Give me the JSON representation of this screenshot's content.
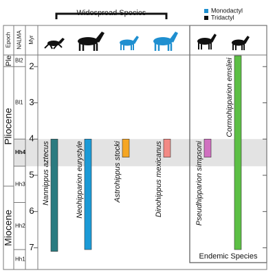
{
  "chart_data": {
    "type": "range",
    "title": "Widespread Species",
    "endemic_label": "Endemic Species",
    "columns": [
      "Epoch",
      "NALMA",
      "Myr"
    ],
    "legend": [
      {
        "name": "Monodactyl",
        "color": "#1f8fd0"
      },
      {
        "name": "Tridactyl",
        "color": "#111111"
      }
    ],
    "ylim": [
      1.68,
      7.6
    ],
    "yticks": [
      2,
      3,
      4,
      5,
      6,
      7
    ],
    "highlight": [
      4.0,
      4.75
    ],
    "epochs": [
      {
        "label": "Ple",
        "range": [
          1.68,
          2.0
        ]
      },
      {
        "label": "Pliocene",
        "range": [
          2.0,
          5.3
        ]
      },
      {
        "label": "Miocene",
        "range": [
          5.3,
          7.6
        ]
      }
    ],
    "nalma": [
      {
        "label": "Bl2",
        "range": [
          1.68,
          2.0
        ]
      },
      {
        "label": "Bl1",
        "range": [
          2.0,
          4.0
        ]
      },
      {
        "label": "Hh4",
        "range": [
          4.0,
          4.75
        ]
      },
      {
        "label": "Hh3",
        "range": [
          4.75,
          5.75
        ]
      },
      {
        "label": "Hh2",
        "range": [
          5.75,
          7.05
        ]
      },
      {
        "label": "Hh1",
        "range": [
          7.05,
          7.6
        ]
      }
    ],
    "series": [
      {
        "name": "Nannippus aztecus",
        "color": "#2b7b80",
        "values": [
          4.0,
          7.1
        ]
      },
      {
        "name": "Neohipparion eurystyle",
        "color": "#1b9ad6",
        "values": [
          4.0,
          7.05
        ]
      },
      {
        "name": "Astrohippus stocki",
        "color": "#f5a623",
        "values": [
          4.0,
          4.5
        ]
      },
      {
        "name": "Dinohippus mexicanus",
        "color": "#f28a85",
        "values": [
          4.0,
          4.5
        ]
      },
      {
        "name": "Pseudhipparion simpsoni",
        "color": "#d070c0",
        "values": [
          4.0,
          4.5
        ]
      },
      {
        "name": "Cormohipparion emsliei",
        "color": "#5cbf45",
        "values": [
          1.7,
          7.05
        ]
      }
    ]
  }
}
